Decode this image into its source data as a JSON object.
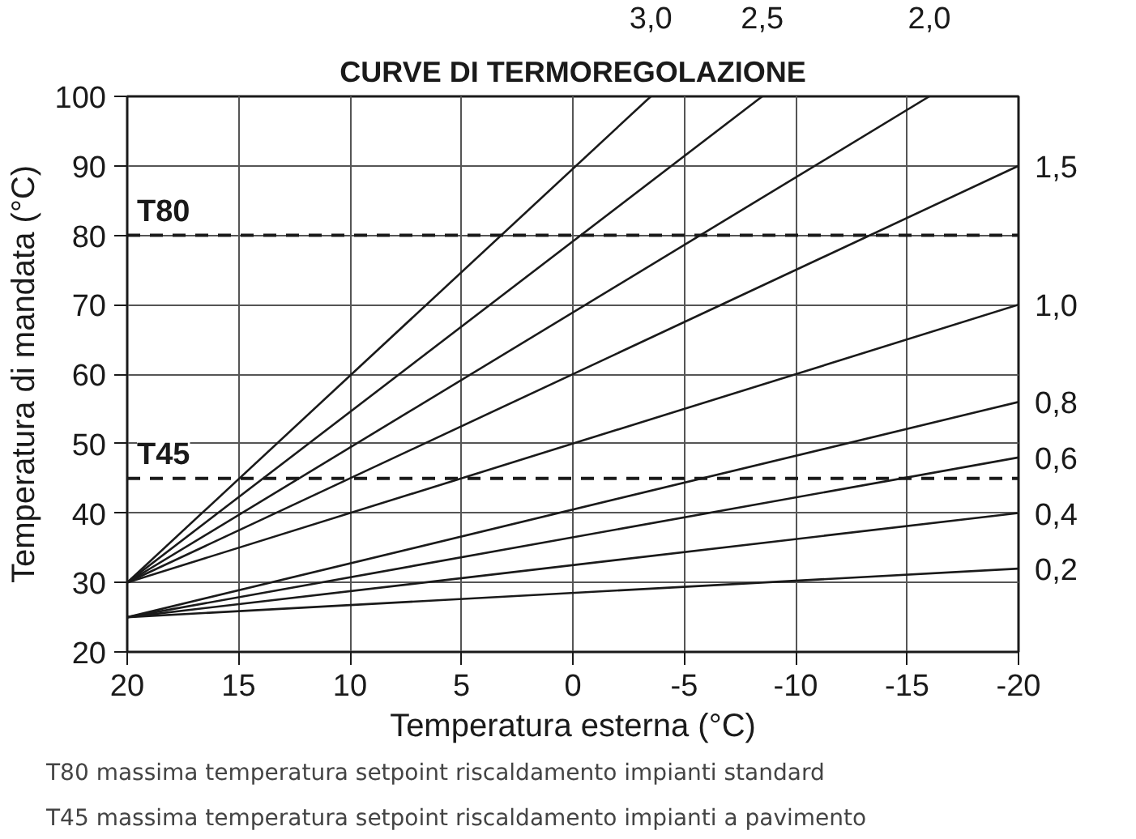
{
  "chart_data": {
    "type": "line",
    "title": "CURVE DI TERMOREGOLAZIONE",
    "xlabel": "Temperatura esterna (°C)",
    "ylabel": "Temperatura di mandata (°C)",
    "xlim": [
      20,
      -20
    ],
    "ylim": [
      20,
      100
    ],
    "xticks": [
      20,
      15,
      10,
      5,
      0,
      -5,
      -10,
      -15,
      -20
    ],
    "yticks": [
      20,
      30,
      40,
      50,
      60,
      70,
      80,
      90,
      100
    ],
    "grid": true,
    "marker": "none",
    "line_style": "solid",
    "series": [
      {
        "name": "3,0",
        "color": "#1a1a1a",
        "x": [
          20,
          -3.5
        ],
        "values": [
          30,
          100
        ]
      },
      {
        "name": "2,5",
        "color": "#1a1a1a",
        "x": [
          20,
          -8.5
        ],
        "values": [
          30,
          100
        ]
      },
      {
        "name": "2,0",
        "color": "#1a1a1a",
        "x": [
          20,
          -16
        ],
        "values": [
          30,
          100
        ]
      },
      {
        "name": "1,5",
        "color": "#1a1a1a",
        "x": [
          20,
          -20
        ],
        "values": [
          30,
          90
        ]
      },
      {
        "name": "1,0",
        "color": "#1a1a1a",
        "x": [
          20,
          -20
        ],
        "values": [
          30,
          70
        ]
      },
      {
        "name": "0,8",
        "color": "#1a1a1a",
        "x": [
          20,
          -20
        ],
        "values": [
          25,
          56
        ]
      },
      {
        "name": "0,6",
        "color": "#1a1a1a",
        "x": [
          20,
          -20
        ],
        "values": [
          25,
          48
        ]
      },
      {
        "name": "0,4",
        "color": "#1a1a1a",
        "x": [
          20,
          -20
        ],
        "values": [
          25,
          40
        ]
      },
      {
        "name": "0,2",
        "color": "#1a1a1a",
        "x": [
          20,
          -20
        ],
        "values": [
          25,
          32
        ]
      }
    ],
    "ref_lines": [
      {
        "axis": "y",
        "value": 80,
        "label": "T80",
        "color": "#1a1a1a",
        "line_style": "dashed"
      },
      {
        "axis": "y",
        "value": 45,
        "label": "T45",
        "color": "#1a1a1a",
        "line_style": "dashed"
      }
    ],
    "annotations": [
      "T80 massima temperatura setpoint riscaldamento impianti standard",
      "T45 massima temperatura setpoint riscaldamento impianti a pavimento"
    ]
  }
}
